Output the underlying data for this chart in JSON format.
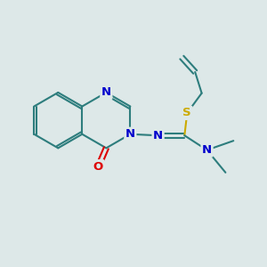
{
  "bg_color": "#dde8e8",
  "bond_color": "#2d7d7d",
  "bond_width": 1.5,
  "atom_colors": {
    "N": "#0000cc",
    "O": "#dd0000",
    "S": "#ccaa00",
    "C": "#2d7d7d"
  },
  "font_size": 9.5,
  "figsize": [
    3.0,
    3.0
  ],
  "dpi": 100,
  "xlim": [
    0,
    10
  ],
  "ylim": [
    0,
    10
  ]
}
